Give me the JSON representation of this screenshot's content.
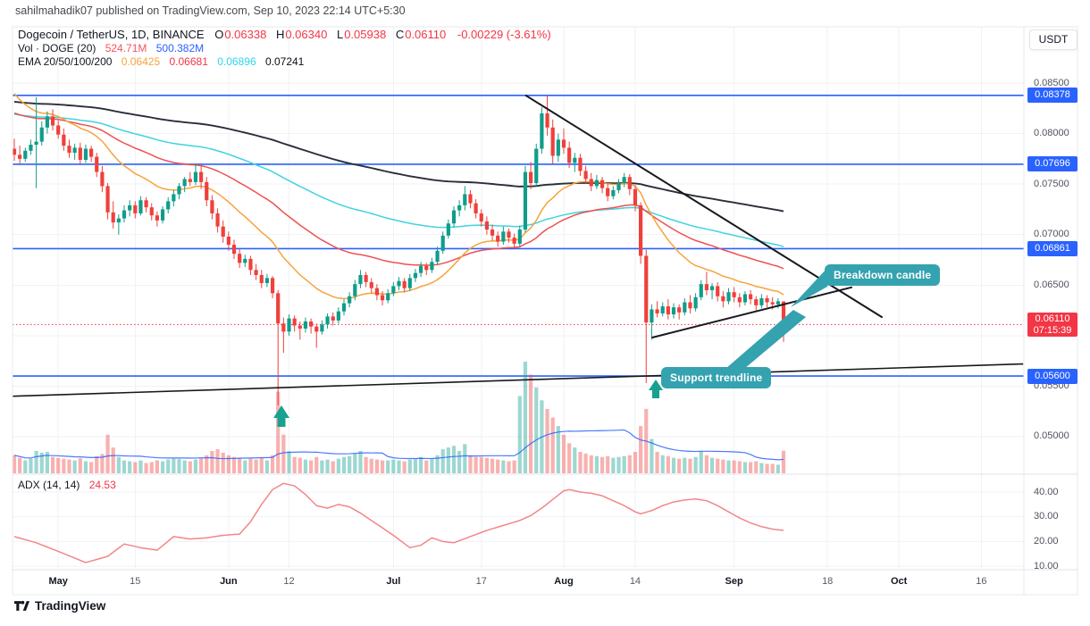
{
  "publish_bar": {
    "text": "sahilmahadik07 published on TradingView.com, Sep 10, 2023 22:14 UTC+5:30"
  },
  "toolbar": {
    "currency_button": "USDT"
  },
  "legend": {
    "symbol": "Dogecoin / TetherUS, 1D, BINANCE",
    "ohlc": [
      {
        "label": "O",
        "value": "0.06338"
      },
      {
        "label": "H",
        "value": "0.06340"
      },
      {
        "label": "L",
        "value": "0.05938"
      },
      {
        "label": "C",
        "value": "0.06110"
      }
    ],
    "change": "-0.00229 (-3.61%)",
    "volume_row": {
      "label": "Vol · DOGE (20)",
      "current": "524.71M",
      "ma": "500.382M"
    },
    "ema_row": {
      "label": "EMA 20/50/100/200",
      "values": [
        "0.06425",
        "0.06681",
        "0.06896",
        "0.07241"
      ]
    }
  },
  "indicator_legend": {
    "label": "ADX (14, 14)",
    "value": "24.53"
  },
  "annotations": {
    "breakdown": "Breakdown candle",
    "support": "Support trendline"
  },
  "badges": {
    "last_price": {
      "value": "0.06110",
      "countdown": "07:15:39"
    }
  },
  "watermark": "TradingView",
  "colors": {
    "up": "#0f9d8a",
    "down": "#ef403c",
    "level_blue": "#2962ff",
    "last_price_red": "#f23645",
    "ema20": "#f7a33c",
    "ema50": "#f05050",
    "ema100": "#3fd3e0",
    "ema200": "#2a2e39",
    "adx_line": "#f2868a",
    "vol_up": "rgba(38,166,154,0.45)",
    "vol_down": "rgba(239,83,80,0.45)",
    "callout": "#35a2b0",
    "arrow": "#18a18e",
    "grid": "#f1f2f6",
    "trendline": "#16181d"
  },
  "chart_data": {
    "type": "candlestick",
    "title": "Dogecoin / TetherUS, 1D, BINANCE",
    "legend_position": "top-left",
    "grid": true,
    "price_line": 0.0611,
    "levels": [
      0.08378,
      0.07696,
      0.06861,
      0.056
    ],
    "y_tick_labels": [
      0.085,
      0.08,
      0.075,
      0.07,
      0.065,
      0.055,
      0.05
    ],
    "grid_prices": [
      0.085,
      0.08,
      0.075,
      0.07,
      0.065,
      0.06,
      0.055,
      0.05
    ],
    "adx_ticks": [
      40,
      30,
      20,
      10
    ],
    "x_ticks": [
      {
        "label": "May",
        "i": 8
      },
      {
        "label": "15",
        "i": 22
      },
      {
        "label": "Jun",
        "i": 39
      },
      {
        "label": "12",
        "i": 50
      },
      {
        "label": "Jul",
        "i": 69
      },
      {
        "label": "17",
        "i": 85
      },
      {
        "label": "Aug",
        "i": 100
      },
      {
        "label": "14",
        "i": 113
      },
      {
        "label": "Sep",
        "i": 131
      },
      {
        "label": "18",
        "i": 148
      },
      {
        "label": "Oct",
        "i": 161
      },
      {
        "label": "16",
        "i": 176
      }
    ],
    "ema_periods": [
      20,
      50,
      100,
      200
    ],
    "ema_seeds": {
      "e20": 0.0846,
      "e50": 0.0822,
      "e100": 0.082,
      "e200": 0.0832
    },
    "volume_ma_period": 20,
    "candles": [
      [
        785,
        795,
        773,
        779,
        420
      ],
      [
        779,
        788,
        770,
        775,
        360
      ],
      [
        775,
        786,
        772,
        783,
        300
      ],
      [
        783,
        794,
        779,
        789,
        340
      ],
      [
        789,
        836,
        746,
        792,
        520
      ],
      [
        792,
        812,
        788,
        806,
        480
      ],
      [
        806,
        822,
        800,
        817,
        500
      ],
      [
        817,
        824,
        803,
        808,
        380
      ],
      [
        808,
        813,
        795,
        799,
        360
      ],
      [
        799,
        805,
        783,
        788,
        340
      ],
      [
        788,
        794,
        776,
        781,
        320
      ],
      [
        781,
        790,
        774,
        786,
        300
      ],
      [
        786,
        791,
        770,
        774,
        350
      ],
      [
        774,
        789,
        771,
        785,
        280
      ],
      [
        785,
        788,
        772,
        777,
        260
      ],
      [
        777,
        781,
        757,
        762,
        400
      ],
      [
        762,
        768,
        742,
        748,
        450
      ],
      [
        748,
        751,
        715,
        722,
        900
      ],
      [
        722,
        733,
        706,
        712,
        600
      ],
      [
        712,
        720,
        700,
        716,
        380
      ],
      [
        716,
        729,
        712,
        724,
        300
      ],
      [
        724,
        734,
        718,
        729,
        280
      ],
      [
        729,
        733,
        716,
        721,
        260
      ],
      [
        721,
        738,
        719,
        734,
        300
      ],
      [
        734,
        737,
        722,
        727,
        240
      ],
      [
        727,
        731,
        714,
        719,
        260
      ],
      [
        719,
        723,
        708,
        714,
        300
      ],
      [
        714,
        728,
        711,
        725,
        280
      ],
      [
        725,
        737,
        721,
        733,
        320
      ],
      [
        733,
        744,
        728,
        740,
        340
      ],
      [
        740,
        751,
        735,
        748,
        330
      ],
      [
        748,
        757,
        742,
        755,
        300
      ],
      [
        755,
        762,
        748,
        752,
        280
      ],
      [
        752,
        770,
        749,
        762,
        320
      ],
      [
        762,
        768,
        745,
        752,
        360
      ],
      [
        752,
        757,
        728,
        734,
        420
      ],
      [
        734,
        739,
        715,
        721,
        520
      ],
      [
        721,
        726,
        702,
        708,
        560
      ],
      [
        708,
        714,
        692,
        698,
        480
      ],
      [
        698,
        703,
        684,
        690,
        420
      ],
      [
        690,
        695,
        676,
        681,
        380
      ],
      [
        681,
        686,
        667,
        672,
        360
      ],
      [
        672,
        680,
        668,
        676,
        300
      ],
      [
        676,
        679,
        660,
        665,
        340
      ],
      [
        665,
        671,
        655,
        660,
        320
      ],
      [
        660,
        665,
        647,
        652,
        360
      ],
      [
        652,
        661,
        648,
        657,
        300
      ],
      [
        657,
        659,
        637,
        642,
        420
      ],
      [
        642,
        645,
        531,
        612,
        1900
      ],
      [
        612,
        618,
        583,
        604,
        900
      ],
      [
        604,
        621,
        600,
        617,
        520
      ],
      [
        617,
        620,
        604,
        610,
        380
      ],
      [
        610,
        614,
        596,
        607,
        360
      ],
      [
        607,
        618,
        603,
        614,
        320
      ],
      [
        614,
        617,
        602,
        609,
        300
      ],
      [
        609,
        612,
        588,
        604,
        380
      ],
      [
        604,
        615,
        601,
        611,
        300
      ],
      [
        611,
        622,
        607,
        619,
        320
      ],
      [
        619,
        623,
        610,
        615,
        280
      ],
      [
        615,
        628,
        612,
        624,
        340
      ],
      [
        624,
        636,
        620,
        632,
        380
      ],
      [
        632,
        643,
        628,
        639,
        400
      ],
      [
        639,
        655,
        635,
        651,
        460
      ],
      [
        651,
        665,
        647,
        660,
        520
      ],
      [
        660,
        663,
        648,
        653,
        380
      ],
      [
        653,
        657,
        642,
        647,
        340
      ],
      [
        647,
        651,
        635,
        640,
        320
      ],
      [
        640,
        644,
        630,
        635,
        300
      ],
      [
        635,
        646,
        632,
        642,
        300
      ],
      [
        642,
        653,
        639,
        649,
        320
      ],
      [
        649,
        658,
        645,
        654,
        300
      ],
      [
        654,
        657,
        643,
        647,
        280
      ],
      [
        647,
        661,
        644,
        657,
        320
      ],
      [
        657,
        666,
        653,
        662,
        340
      ],
      [
        662,
        673,
        658,
        669,
        380
      ],
      [
        669,
        672,
        660,
        665,
        300
      ],
      [
        665,
        677,
        662,
        673,
        340
      ],
      [
        673,
        688,
        670,
        684,
        420
      ],
      [
        684,
        703,
        681,
        699,
        560
      ],
      [
        699,
        715,
        696,
        711,
        600
      ],
      [
        711,
        728,
        707,
        724,
        640
      ],
      [
        724,
        734,
        718,
        729,
        520
      ],
      [
        729,
        748,
        724,
        740,
        680
      ],
      [
        740,
        744,
        726,
        731,
        420
      ],
      [
        731,
        735,
        716,
        721,
        380
      ],
      [
        721,
        725,
        708,
        713,
        380
      ],
      [
        713,
        718,
        700,
        705,
        360
      ],
      [
        705,
        710,
        694,
        699,
        340
      ],
      [
        699,
        703,
        688,
        693,
        320
      ],
      [
        693,
        708,
        690,
        703,
        300
      ],
      [
        703,
        706,
        692,
        697,
        280
      ],
      [
        697,
        701,
        686,
        691,
        300
      ],
      [
        691,
        709,
        688,
        705,
        1800
      ],
      [
        705,
        768,
        702,
        762,
        2600
      ],
      [
        762,
        772,
        745,
        751,
        2300
      ],
      [
        751,
        790,
        748,
        785,
        2000
      ],
      [
        785,
        826,
        780,
        820,
        1700
      ],
      [
        820,
        838,
        798,
        806,
        1500
      ],
      [
        806,
        814,
        770,
        778,
        1300
      ],
      [
        778,
        800,
        772,
        794,
        1100
      ],
      [
        794,
        805,
        780,
        786,
        900
      ],
      [
        786,
        792,
        766,
        771,
        700
      ],
      [
        771,
        781,
        762,
        776,
        600
      ],
      [
        776,
        780,
        758,
        763,
        500
      ],
      [
        763,
        768,
        750,
        755,
        460
      ],
      [
        755,
        761,
        743,
        748,
        420
      ],
      [
        748,
        759,
        745,
        754,
        400
      ],
      [
        754,
        757,
        741,
        746,
        380
      ],
      [
        746,
        751,
        733,
        738,
        400
      ],
      [
        738,
        748,
        735,
        744,
        360
      ],
      [
        744,
        755,
        741,
        751,
        380
      ],
      [
        751,
        761,
        747,
        757,
        400
      ],
      [
        757,
        760,
        739,
        745,
        420
      ],
      [
        745,
        749,
        723,
        729,
        500
      ],
      [
        729,
        732,
        671,
        679,
        1100
      ],
      [
        679,
        685,
        553,
        613,
        1500
      ],
      [
        613,
        631,
        596,
        626,
        800
      ],
      [
        626,
        634,
        618,
        622,
        500
      ],
      [
        622,
        633,
        619,
        629,
        420
      ],
      [
        629,
        636,
        616,
        621,
        400
      ],
      [
        621,
        632,
        617,
        628,
        360
      ],
      [
        628,
        631,
        616,
        623,
        340
      ],
      [
        623,
        637,
        620,
        633,
        360
      ],
      [
        633,
        640,
        622,
        627,
        340
      ],
      [
        627,
        642,
        624,
        638,
        380
      ],
      [
        638,
        655,
        635,
        651,
        520
      ],
      [
        651,
        663,
        640,
        645,
        420
      ],
      [
        645,
        652,
        636,
        649,
        360
      ],
      [
        649,
        653,
        634,
        639,
        340
      ],
      [
        639,
        644,
        628,
        634,
        320
      ],
      [
        634,
        647,
        631,
        643,
        300
      ],
      [
        643,
        648,
        633,
        638,
        300
      ],
      [
        638,
        642,
        628,
        633,
        280
      ],
      [
        633,
        644,
        630,
        641,
        260
      ],
      [
        641,
        645,
        631,
        636,
        260
      ],
      [
        636,
        639,
        625,
        630,
        280
      ],
      [
        630,
        641,
        627,
        637,
        240
      ],
      [
        637,
        640,
        628,
        633,
        220
      ],
      [
        633,
        638,
        626,
        631,
        220
      ],
      [
        631,
        637,
        627,
        634,
        200
      ],
      [
        633.8,
        634,
        593.8,
        611,
        525
      ]
    ],
    "adx_anchors": [
      [
        0,
        22
      ],
      [
        4,
        19.5
      ],
      [
        8,
        16
      ],
      [
        13,
        11.5
      ],
      [
        17,
        14
      ],
      [
        20,
        19
      ],
      [
        23,
        17.5
      ],
      [
        26,
        16.5
      ],
      [
        29,
        22
      ],
      [
        32,
        21
      ],
      [
        35,
        21.5
      ],
      [
        38,
        22.5
      ],
      [
        41,
        23
      ],
      [
        43,
        28
      ],
      [
        45,
        35
      ],
      [
        47,
        41
      ],
      [
        49,
        43.5
      ],
      [
        51,
        42.5
      ],
      [
        53,
        39
      ],
      [
        55,
        34.5
      ],
      [
        57,
        33.5
      ],
      [
        59,
        35
      ],
      [
        61,
        34
      ],
      [
        63,
        31.5
      ],
      [
        66,
        27
      ],
      [
        69,
        22.5
      ],
      [
        72,
        17.5
      ],
      [
        74,
        18.5
      ],
      [
        76,
        21.5
      ],
      [
        78,
        20
      ],
      [
        80,
        19.5
      ],
      [
        83,
        22
      ],
      [
        86,
        24.5
      ],
      [
        89,
        26.5
      ],
      [
        92,
        28.5
      ],
      [
        94,
        30.5
      ],
      [
        96,
        33.5
      ],
      [
        98,
        37
      ],
      [
        100,
        40.5
      ],
      [
        101,
        41
      ],
      [
        103,
        40
      ],
      [
        105,
        39.5
      ],
      [
        107,
        38.5
      ],
      [
        109,
        36.5
      ],
      [
        111,
        34.5
      ],
      [
        113,
        32
      ],
      [
        114,
        31.2
      ],
      [
        116,
        32.5
      ],
      [
        118,
        34.5
      ],
      [
        120,
        36
      ],
      [
        122,
        36.8
      ],
      [
        124,
        37.2
      ],
      [
        126,
        36.5
      ],
      [
        128,
        34.5
      ],
      [
        130,
        32
      ],
      [
        132,
        29.5
      ],
      [
        134,
        27.5
      ],
      [
        136,
        26
      ],
      [
        138,
        25
      ],
      [
        140,
        24.53
      ]
    ],
    "trendlines": [
      {
        "name": "descending-resistance",
        "from": [
          93,
          0.0838
        ],
        "to": [
          158,
          0.0618
        ]
      },
      {
        "name": "rising-support",
        "from": [
          116,
          0.0598
        ],
        "to": [
          152.5,
          0.0648
        ]
      },
      {
        "name": "long-term-support",
        "from": [
          -0.3,
          0.054
        ],
        "to": [
          183.6,
          0.0572
        ]
      }
    ]
  }
}
